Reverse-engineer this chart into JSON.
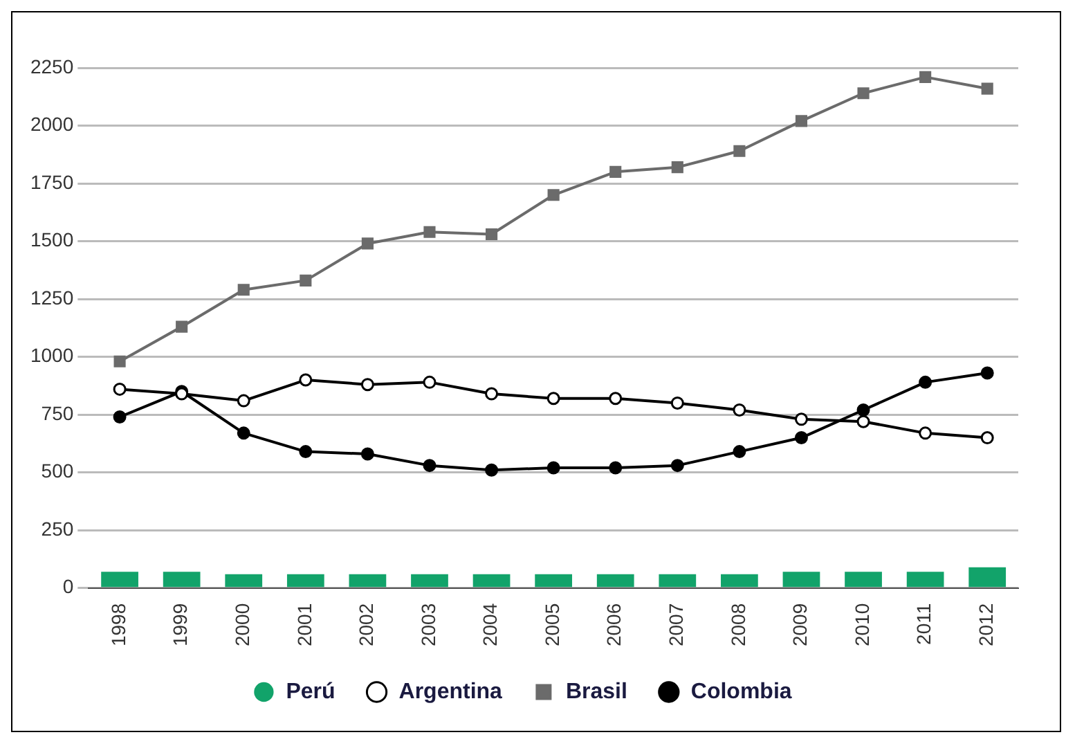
{
  "chart_data": {
    "type": "line",
    "categories": [
      "1998",
      "1999",
      "2000",
      "2001",
      "2002",
      "2003",
      "2004",
      "2005",
      "2006",
      "2007",
      "2008",
      "2009",
      "2010",
      "2011",
      "2012"
    ],
    "series": [
      {
        "name": "Perú",
        "type": "bar",
        "color": "#12a36a",
        "values": [
          70,
          70,
          60,
          60,
          60,
          60,
          60,
          60,
          60,
          60,
          60,
          70,
          70,
          70,
          90
        ]
      },
      {
        "name": "Argentina",
        "marker": "circle",
        "color": "#000000",
        "values": [
          860,
          840,
          810,
          900,
          880,
          890,
          840,
          820,
          820,
          800,
          770,
          730,
          720,
          670,
          650
        ]
      },
      {
        "name": "Brasil",
        "marker": "square",
        "color": "#6b6b6b",
        "values": [
          980,
          1130,
          1290,
          1330,
          1490,
          1540,
          1530,
          1700,
          1800,
          1820,
          1890,
          2020,
          2140,
          2210,
          2160
        ]
      },
      {
        "name": "Colombia",
        "marker": "circle",
        "color": "#000000",
        "values": [
          740,
          850,
          670,
          590,
          580,
          530,
          510,
          520,
          520,
          530,
          590,
          650,
          770,
          890,
          930
        ]
      }
    ],
    "ylim": [
      0,
      2250
    ],
    "yticks": [
      0,
      250,
      500,
      750,
      1000,
      1250,
      1500,
      1750,
      2000,
      2250
    ],
    "grid": "y",
    "legend": "bottom"
  }
}
